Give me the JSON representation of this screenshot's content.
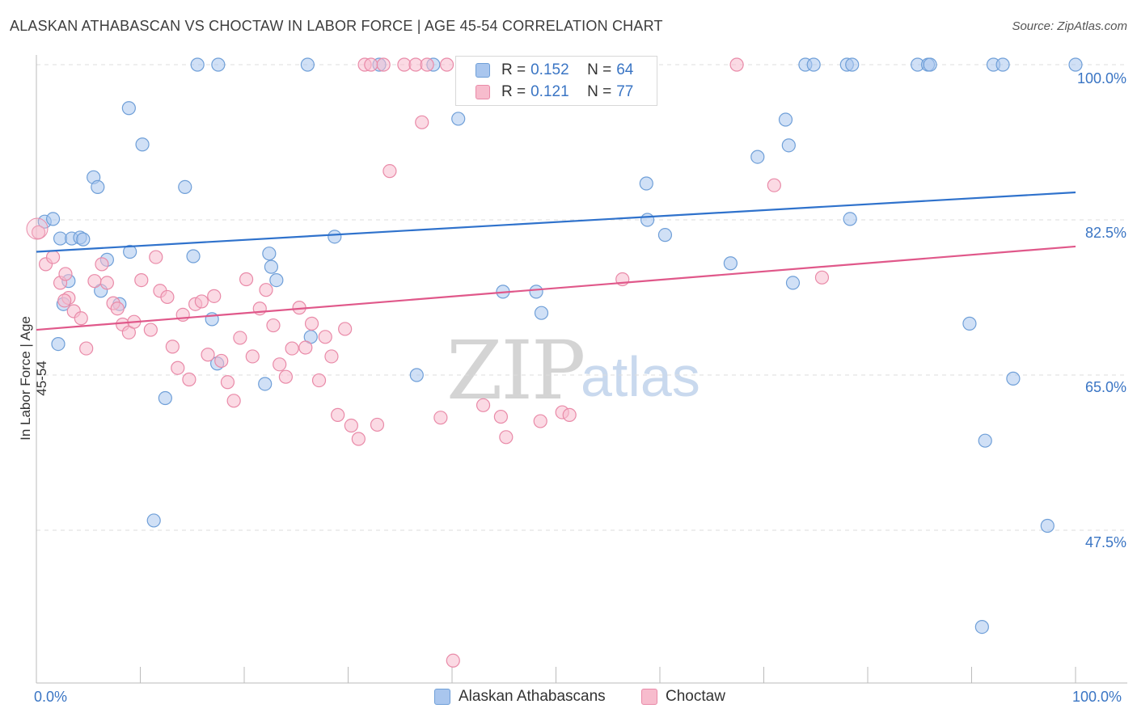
{
  "title": "ALASKAN ATHABASCAN VS CHOCTAW IN LABOR FORCE | AGE 45-54 CORRELATION CHART",
  "source": "Source: ZipAtlas.com",
  "watermark": {
    "zip": "ZIP",
    "atlas": "atlas"
  },
  "legend": {
    "rows": [
      {
        "r_label": "R = ",
        "r_value": "0.152",
        "n_label": "N = ",
        "n_value": "64",
        "color": "#a9c6ee",
        "edge": "#6f9fd8"
      },
      {
        "r_label": "R = ",
        "r_value": "0.121",
        "n_label": "N = ",
        "n_value": "77",
        "color": "#f7bccd",
        "edge": "#e98aa8"
      }
    ]
  },
  "chart_data": {
    "type": "scatter",
    "title": "ALASKAN ATHABASCAN VS CHOCTAW IN LABOR FORCE | AGE 45-54 CORRELATION CHART",
    "xlabel": "",
    "ylabel": "In Labor Force | Age 45-54",
    "xlim": [
      0,
      100
    ],
    "ylim": [
      30,
      102
    ],
    "x_tick_labels": [
      "0.0%",
      "100.0%"
    ],
    "y_ticks": [
      100.0,
      82.5,
      65.0,
      47.5
    ],
    "y_tick_labels": [
      "100.0%",
      "82.5%",
      "65.0%",
      "47.5%"
    ],
    "grid": true,
    "series": [
      {
        "name": "Alaskan Athabascans",
        "color": "#6f9fd8",
        "fill": "#a9c6ee",
        "line_color": "#2f72cc",
        "trend": [
          [
            0,
            78.9
          ],
          [
            100,
            85.6
          ]
        ],
        "points": [
          [
            0.8,
            82.3
          ],
          [
            1.6,
            82.6
          ],
          [
            2.3,
            80.4
          ],
          [
            3.4,
            80.4
          ],
          [
            4.2,
            80.5
          ],
          [
            6.8,
            78.0
          ],
          [
            5.5,
            87.3
          ],
          [
            5.9,
            86.2
          ],
          [
            3.1,
            75.6
          ],
          [
            4.5,
            80.3
          ],
          [
            2.1,
            68.5
          ],
          [
            2.6,
            73.0
          ],
          [
            6.2,
            74.5
          ],
          [
            8.0,
            73.0
          ],
          [
            8.9,
            95.1
          ],
          [
            9.0,
            78.9
          ],
          [
            10.2,
            91.0
          ],
          [
            12.4,
            62.4
          ],
          [
            14.3,
            86.2
          ],
          [
            15.1,
            78.4
          ],
          [
            16.9,
            71.3
          ],
          [
            17.4,
            66.3
          ],
          [
            15.5,
            100.0
          ],
          [
            17.5,
            100.0
          ],
          [
            22.4,
            78.7
          ],
          [
            22.0,
            64.0
          ],
          [
            22.6,
            77.2
          ],
          [
            23.1,
            75.7
          ],
          [
            26.1,
            100.0
          ],
          [
            26.4,
            69.3
          ],
          [
            28.7,
            80.6
          ],
          [
            33.0,
            100.0
          ],
          [
            36.6,
            65.0
          ],
          [
            38.2,
            100.0
          ],
          [
            40.6,
            93.9
          ],
          [
            44.9,
            74.4
          ],
          [
            48.1,
            74.4
          ],
          [
            48.6,
            72.0
          ],
          [
            58.0,
            100.0
          ],
          [
            58.7,
            86.6
          ],
          [
            58.8,
            82.5
          ],
          [
            60.5,
            80.8
          ],
          [
            66.8,
            77.6
          ],
          [
            72.1,
            93.8
          ],
          [
            72.4,
            90.9
          ],
          [
            72.8,
            75.4
          ],
          [
            74.0,
            100.0
          ],
          [
            74.8,
            100.0
          ],
          [
            78.0,
            100.0
          ],
          [
            78.3,
            82.6
          ],
          [
            78.5,
            100.0
          ],
          [
            84.8,
            100.0
          ],
          [
            85.8,
            100.0
          ],
          [
            86.0,
            100.0
          ],
          [
            89.8,
            70.8
          ],
          [
            91.3,
            57.6
          ],
          [
            92.1,
            100.0
          ],
          [
            93.0,
            100.0
          ],
          [
            97.3,
            48.0
          ],
          [
            91.0,
            36.6
          ],
          [
            100.0,
            100.0
          ],
          [
            94.0,
            64.6
          ],
          [
            69.4,
            89.6
          ],
          [
            11.3,
            48.6
          ]
        ]
      },
      {
        "name": "Choctaw",
        "color": "#e98aa8",
        "fill": "#f7bccd",
        "line_color": "#e0588a",
        "trend": [
          [
            0,
            70.1
          ],
          [
            100,
            79.5
          ]
        ],
        "points": [
          [
            0.2,
            81.1
          ],
          [
            0.9,
            77.5
          ],
          [
            1.6,
            78.3
          ],
          [
            2.3,
            75.4
          ],
          [
            2.8,
            76.4
          ],
          [
            3.1,
            73.7
          ],
          [
            3.6,
            72.2
          ],
          [
            4.3,
            71.4
          ],
          [
            4.8,
            68.0
          ],
          [
            5.6,
            75.6
          ],
          [
            6.3,
            77.5
          ],
          [
            6.8,
            75.4
          ],
          [
            7.4,
            73.1
          ],
          [
            7.8,
            72.5
          ],
          [
            8.3,
            70.7
          ],
          [
            8.9,
            69.8
          ],
          [
            9.4,
            71.0
          ],
          [
            10.1,
            75.7
          ],
          [
            11.0,
            70.1
          ],
          [
            11.5,
            78.3
          ],
          [
            11.9,
            74.5
          ],
          [
            12.6,
            73.8
          ],
          [
            13.1,
            68.2
          ],
          [
            13.6,
            65.8
          ],
          [
            14.1,
            71.8
          ],
          [
            14.7,
            64.5
          ],
          [
            15.3,
            73.0
          ],
          [
            15.9,
            73.3
          ],
          [
            16.5,
            67.3
          ],
          [
            17.1,
            73.9
          ],
          [
            17.8,
            66.6
          ],
          [
            18.4,
            64.2
          ],
          [
            19.0,
            62.1
          ],
          [
            19.6,
            69.2
          ],
          [
            20.2,
            75.8
          ],
          [
            20.8,
            67.1
          ],
          [
            21.5,
            72.5
          ],
          [
            22.1,
            74.6
          ],
          [
            22.8,
            70.6
          ],
          [
            23.4,
            66.2
          ],
          [
            24.0,
            64.8
          ],
          [
            24.6,
            68.0
          ],
          [
            25.3,
            72.6
          ],
          [
            25.9,
            68.1
          ],
          [
            26.5,
            70.8
          ],
          [
            27.2,
            64.4
          ],
          [
            27.8,
            69.3
          ],
          [
            28.4,
            67.1
          ],
          [
            29.0,
            60.5
          ],
          [
            29.7,
            70.2
          ],
          [
            30.3,
            59.3
          ],
          [
            31.0,
            57.8
          ],
          [
            31.6,
            100.0
          ],
          [
            32.2,
            100.0
          ],
          [
            32.8,
            59.4
          ],
          [
            33.4,
            100.0
          ],
          [
            34.0,
            88.0
          ],
          [
            35.4,
            100.0
          ],
          [
            36.5,
            100.0
          ],
          [
            37.1,
            93.5
          ],
          [
            37.6,
            100.0
          ],
          [
            38.9,
            60.2
          ],
          [
            39.5,
            100.0
          ],
          [
            40.1,
            32.8
          ],
          [
            41.3,
            100.0
          ],
          [
            42.5,
            100.0
          ],
          [
            43.0,
            61.6
          ],
          [
            44.7,
            60.3
          ],
          [
            45.2,
            58.0
          ],
          [
            48.5,
            59.8
          ],
          [
            50.6,
            60.8
          ],
          [
            51.3,
            60.5
          ],
          [
            56.4,
            75.8
          ],
          [
            67.4,
            100.0
          ],
          [
            71.0,
            86.4
          ],
          [
            75.6,
            76.0
          ],
          [
            2.7,
            73.4
          ]
        ]
      }
    ]
  },
  "bottom_legend": [
    "Alaskan Athabascans",
    "Choctaw"
  ]
}
